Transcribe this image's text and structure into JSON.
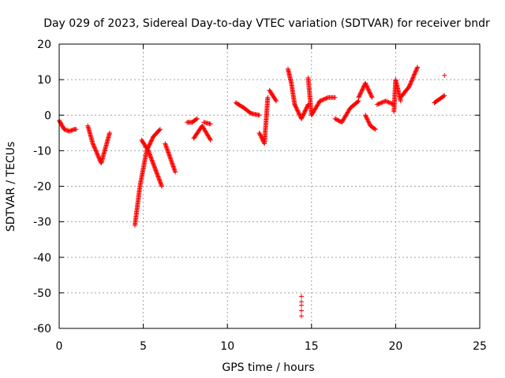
{
  "chart_data": {
    "type": "scatter",
    "title": "Day 029 of 2023, Sidereal Day-to-day VTEC variation (SDTVAR) for receiver bndr",
    "xlabel": "GPS time / hours",
    "ylabel": "SDTVAR / TECUs",
    "xlim": [
      0,
      25
    ],
    "ylim": [
      -60,
      20
    ],
    "xticks": [
      "0",
      "5",
      "10",
      "15",
      "20",
      "25"
    ],
    "yticks": [
      "-60",
      "-50",
      "-40",
      "-30",
      "-20",
      "-10",
      "0",
      "10",
      "20"
    ],
    "grid": true,
    "marker": "+",
    "color": "#ff0000",
    "segments": [
      {
        "x": [
          0,
          0.3,
          0.6,
          0.9,
          1.0
        ],
        "y": [
          -1.5,
          -4,
          -4.5,
          -4,
          -4
        ]
      },
      {
        "x": [
          1.7,
          2.0,
          2.5,
          3.0
        ],
        "y": [
          -3,
          -8,
          -13.5,
          -5
        ]
      },
      {
        "x": [
          4.5,
          4.8,
          5.2,
          5.6,
          6.0
        ],
        "y": [
          -31,
          -20,
          -10,
          -6,
          -4
        ]
      },
      {
        "x": [
          4.9,
          5.3,
          5.7,
          6.1
        ],
        "y": [
          -7,
          -10,
          -15,
          -20
        ]
      },
      {
        "x": [
          6.3,
          6.6,
          6.9
        ],
        "y": [
          -8,
          -12,
          -16
        ]
      },
      {
        "x": [
          7.6,
          7.9,
          8.2
        ],
        "y": [
          -2,
          -2,
          -1
        ]
      },
      {
        "x": [
          8.0,
          8.5,
          9.0
        ],
        "y": [
          -6.5,
          -3,
          -7
        ]
      },
      {
        "x": [
          8.6,
          9.0
        ],
        "y": [
          -2,
          -2.5
        ]
      },
      {
        "x": [
          10.5,
          11.0,
          11.4,
          11.9
        ],
        "y": [
          3.5,
          2,
          0.5,
          0
        ]
      },
      {
        "x": [
          11.9,
          12.2,
          12.4
        ],
        "y": [
          -5,
          -8,
          5
        ]
      },
      {
        "x": [
          12.5,
          12.9
        ],
        "y": [
          7,
          4
        ]
      },
      {
        "x": [
          13.6,
          13.8,
          14.0
        ],
        "y": [
          13,
          9,
          3
        ]
      },
      {
        "x": [
          14.0,
          14.4,
          14.8
        ],
        "y": [
          3,
          -1,
          3
        ]
      },
      {
        "x": [
          14.8,
          15.0,
          15.5
        ],
        "y": [
          10.5,
          0,
          4
        ]
      },
      {
        "x": [
          15.5,
          16.0,
          16.4
        ],
        "y": [
          4,
          5,
          5
        ]
      },
      {
        "x": [
          16.4,
          16.8,
          17.3,
          17.8
        ],
        "y": [
          -1,
          -2,
          2,
          4
        ]
      },
      {
        "x": [
          17.8,
          18.2,
          18.6
        ],
        "y": [
          5,
          9,
          5
        ]
      },
      {
        "x": [
          18.2,
          18.5,
          18.8
        ],
        "y": [
          0,
          -3,
          -4
        ]
      },
      {
        "x": [
          18.9,
          19.4,
          19.9
        ],
        "y": [
          3,
          4,
          3
        ]
      },
      {
        "x": [
          19.9,
          20.0,
          20.3
        ],
        "y": [
          1,
          10,
          4
        ]
      },
      {
        "x": [
          20.3,
          20.8,
          21.3
        ],
        "y": [
          5,
          8,
          13.5
        ]
      },
      {
        "x": [
          22.3,
          22.6,
          22.9
        ],
        "y": [
          3.5,
          4.5,
          5.5
        ]
      }
    ],
    "points": [
      {
        "x": 14.4,
        "y": -51
      },
      {
        "x": 14.4,
        "y": -52.5
      },
      {
        "x": 14.4,
        "y": -53.5
      },
      {
        "x": 14.4,
        "y": -55
      },
      {
        "x": 14.4,
        "y": -56.5
      },
      {
        "x": 22.9,
        "y": 11.2
      }
    ]
  }
}
